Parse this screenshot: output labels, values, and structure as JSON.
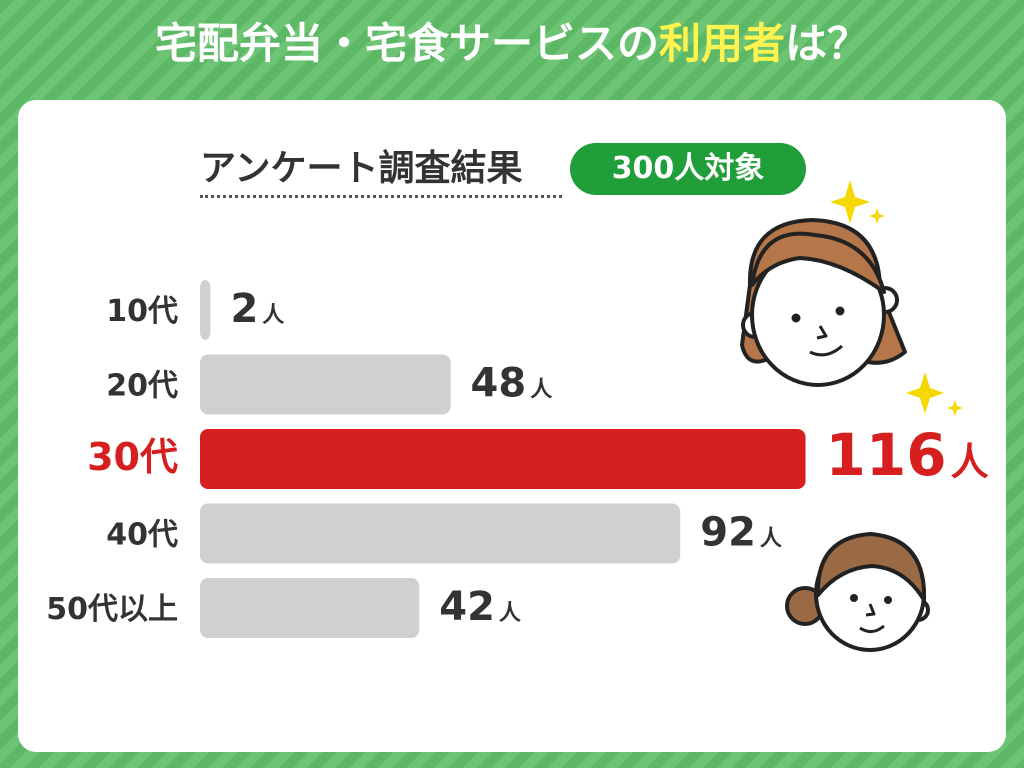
{
  "header": {
    "title_before": "宅配弁当・宅食サービスの",
    "title_highlight": "利用者",
    "title_after": "は？"
  },
  "survey": {
    "heading": "アンケート調査結果",
    "target_label": "300人対象"
  },
  "colors": {
    "background": "#5cb865",
    "highlight_text": "#fff34f",
    "pill": "#1f9e3a",
    "bar_default": "#d0d0d0",
    "bar_highlight": "#d61f1f",
    "label_text": "#333333"
  },
  "decorations": [
    "sparkle-icon",
    "woman-long-hair-face-icon",
    "woman-bun-face-icon"
  ],
  "chart_data": {
    "type": "bar",
    "orientation": "horizontal",
    "categories": [
      "10代",
      "20代",
      "30代",
      "40代",
      "50代以上"
    ],
    "values": [
      2,
      48,
      116,
      92,
      42
    ],
    "value_labels": [
      "2",
      "48",
      "116",
      "92",
      "42"
    ],
    "unit": "人",
    "highlight_index": 2,
    "title": "",
    "xlabel": "",
    "ylabel": "",
    "grid": false
  }
}
